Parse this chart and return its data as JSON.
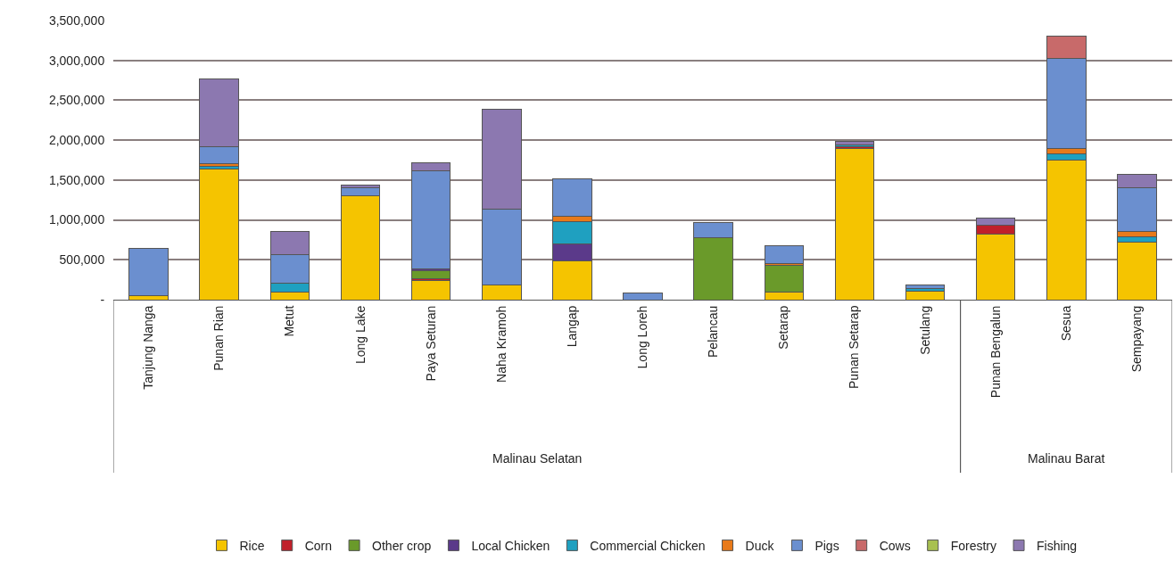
{
  "chart_data": {
    "type": "bar",
    "stacked": true,
    "categories": [
      "Tanjung Nanga",
      "Punan Rian",
      "Metut",
      "Long Lake",
      "Paya Seturan",
      "Naha Kramoh",
      "Langap",
      "Long Loreh",
      "Pelancau",
      "Setarap",
      "Punan Setarap",
      "Setulang",
      "Punan Bengalun",
      "Sesua",
      "Sempayang"
    ],
    "series": [
      {
        "name": "Rice",
        "color": "#f5c400",
        "values": [
          50000,
          1640000,
          90000,
          1300000,
          240000,
          180000,
          490000,
          null,
          null,
          90000,
          1900000,
          110000,
          820000,
          1750000,
          720000
        ]
      },
      {
        "name": "Corn",
        "color": "#c0202a",
        "values": [
          null,
          null,
          null,
          null,
          20000,
          null,
          null,
          null,
          null,
          null,
          20000,
          null,
          110000,
          null,
          null
        ]
      },
      {
        "name": "Other crop",
        "color": "#6a9a2a",
        "values": [
          null,
          null,
          null,
          null,
          100000,
          null,
          null,
          null,
          780000,
          340000,
          null,
          null,
          null,
          null,
          null
        ]
      },
      {
        "name": "Local Chicken",
        "color": "#5b3a8a",
        "values": [
          null,
          null,
          null,
          null,
          30000,
          null,
          210000,
          null,
          null,
          null,
          null,
          null,
          null,
          null,
          null
        ]
      },
      {
        "name": "Commercial Chicken",
        "color": "#1fa0c0",
        "values": [
          null,
          30000,
          120000,
          null,
          null,
          null,
          280000,
          null,
          null,
          null,
          20000,
          30000,
          null,
          80000,
          70000
        ]
      },
      {
        "name": "Duck",
        "color": "#e87a1a",
        "values": [
          null,
          30000,
          null,
          null,
          null,
          null,
          60000,
          null,
          null,
          20000,
          null,
          null,
          null,
          60000,
          60000
        ]
      },
      {
        "name": "Pigs",
        "color": "#6b8fcf",
        "values": [
          590000,
          220000,
          350000,
          100000,
          1230000,
          960000,
          470000,
          80000,
          190000,
          230000,
          null,
          40000,
          null,
          1140000,
          550000
        ]
      },
      {
        "name": "Cows",
        "color": "#c86a6a",
        "values": [
          null,
          null,
          null,
          null,
          null,
          null,
          null,
          null,
          null,
          null,
          null,
          null,
          null,
          270000,
          null
        ]
      },
      {
        "name": "Forestry",
        "color": "#a8c050",
        "values": [
          null,
          null,
          null,
          null,
          null,
          null,
          null,
          null,
          null,
          null,
          null,
          null,
          null,
          null,
          null
        ]
      },
      {
        "name": "Fishing",
        "color": "#8c78b0",
        "values": [
          null,
          850000,
          300000,
          40000,
          100000,
          1250000,
          null,
          null,
          null,
          null,
          50000,
          null,
          90000,
          null,
          170000
        ]
      }
    ],
    "ylim": [
      0,
      3500000
    ],
    "yticks": [
      {
        "value": 0,
        "label": "-"
      },
      {
        "value": 500000,
        "label": "500,000"
      },
      {
        "value": 1000000,
        "label": "1,000,000"
      },
      {
        "value": 1500000,
        "label": "1,500,000"
      },
      {
        "value": 2000000,
        "label": "2,000,000"
      },
      {
        "value": 2500000,
        "label": "2,500,000"
      },
      {
        "value": 3000000,
        "label": "3,000,000"
      },
      {
        "value": 3500000,
        "label": "3,500,000"
      }
    ],
    "grid": "y",
    "legend": "bottom",
    "annotations": [
      "Malinau Selatan",
      "Malinau Barat"
    ]
  }
}
